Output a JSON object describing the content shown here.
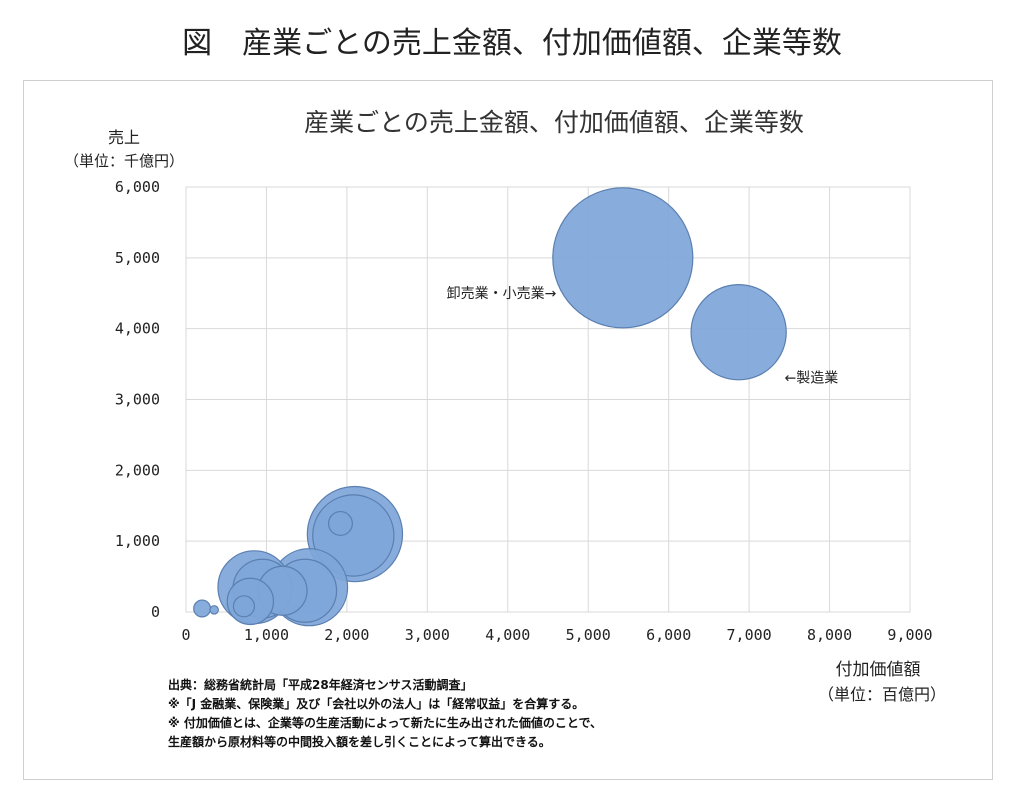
{
  "figure_title": "図　産業ごとの売上金額、付加価値額、企業等数",
  "colors": {
    "bubble_fill": "#7ea6d9",
    "bubble_stroke": "#5a7fb0",
    "grid": "#d9d9d9"
  },
  "chart_data": {
    "type": "scatter",
    "title": "産業ごとの売上金額、付加価値額、企業等数",
    "ylabel": "売上",
    "ylabel_unit": "（単位：千億円）",
    "xlabel": "付加価値額",
    "xlabel_unit": "（単位：百億円）",
    "xlim": [
      0,
      9000
    ],
    "ylim": [
      0,
      6000
    ],
    "x_ticks": [
      "0",
      "1,000",
      "2,000",
      "3,000",
      "4,000",
      "5,000",
      "6,000",
      "7,000",
      "8,000",
      "9,000"
    ],
    "y_ticks": [
      "0",
      "1,000",
      "2,000",
      "3,000",
      "4,000",
      "5,000",
      "6,000"
    ],
    "grid": true,
    "points": [
      {
        "x": 5430,
        "y": 5000,
        "size": 1.0
      },
      {
        "x": 6870,
        "y": 3950,
        "size": 0.68
      },
      {
        "x": 2100,
        "y": 1100,
        "size": 0.68
      },
      {
        "x": 2080,
        "y": 1080,
        "size": 0.58
      },
      {
        "x": 1920,
        "y": 1250,
        "size": 0.17
      },
      {
        "x": 850,
        "y": 350,
        "size": 0.52
      },
      {
        "x": 950,
        "y": 330,
        "size": 0.42
      },
      {
        "x": 1200,
        "y": 300,
        "size": 0.35
      },
      {
        "x": 1530,
        "y": 350,
        "size": 0.55
      },
      {
        "x": 1480,
        "y": 300,
        "size": 0.45
      },
      {
        "x": 800,
        "y": 150,
        "size": 0.33
      },
      {
        "x": 720,
        "y": 80,
        "size": 0.15
      },
      {
        "x": 200,
        "y": 50,
        "size": 0.12
      },
      {
        "x": 350,
        "y": 30,
        "size": 0.06
      }
    ],
    "annotations": [
      {
        "text": "卸売業・小売業→",
        "x": 3240,
        "y": 4430
      },
      {
        "text": "←製造業",
        "x": 7440,
        "y": 3240
      }
    ]
  },
  "notes": [
    "出典：総務省統計局「平成28年経済センサス活動調査」",
    "※「J 金融業、保険業」及び「会社以外の法人」は「経常収益」を合算する。",
    "※ 付加価値とは、企業等の生産活動によって新たに生み出された価値のことで、",
    "生産額から原材料等の中間投入額を差し引くことによって算出できる。"
  ]
}
